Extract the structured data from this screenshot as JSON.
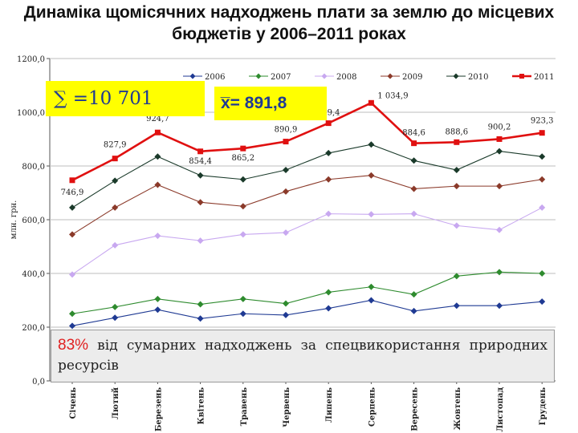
{
  "title_line1": "Динаміка щомісячних надходжень плати за землю до місцевих",
  "title_line2": "бюджетів у 2006–2011  роках",
  "sum_text": "∑ =10 701",
  "mean_text": "x̅= 891,8",
  "note": {
    "percent": "83%",
    "text": " від сумарних надходжень за спецвикористання природних ресурсів"
  },
  "chart_data": {
    "type": "line",
    "title": "",
    "ylabel": "млн. грн.",
    "xlabel": "",
    "ylim": [
      0,
      1200
    ],
    "yticks": [
      "0,0",
      "200,0",
      "400,0",
      "600,0",
      "800,0",
      "1000,0",
      "1200,0"
    ],
    "categories": [
      "Січень",
      "Лютий",
      "Березень",
      "Квітень",
      "Травень",
      "Червень",
      "Липень",
      "Серпень",
      "Вересень",
      "Жовтень",
      "Листопад",
      "Грудень"
    ],
    "legend_position": "top",
    "series": [
      {
        "name": "2006",
        "color": "#1f3a93",
        "marker": "diamond",
        "values": [
          205,
          235,
          265,
          232,
          250,
          245,
          270,
          300,
          260,
          280,
          280,
          295
        ]
      },
      {
        "name": "2007",
        "color": "#2e8b2e",
        "marker": "diamond",
        "values": [
          250,
          275,
          305,
          285,
          305,
          288,
          330,
          350,
          322,
          390,
          405,
          400
        ]
      },
      {
        "name": "2008",
        "color": "#c8a8f0",
        "marker": "diamond",
        "values": [
          396,
          505,
          540,
          522,
          545,
          552,
          622,
          620,
          622,
          578,
          562,
          645
        ]
      },
      {
        "name": "2009",
        "color": "#8b3a2a",
        "marker": "diamond",
        "values": [
          545,
          645,
          730,
          665,
          650,
          705,
          750,
          765,
          715,
          725,
          725,
          750
        ]
      },
      {
        "name": "2010",
        "color": "#1a3a2a",
        "marker": "diamond",
        "values": [
          645,
          745,
          835,
          765,
          750,
          785,
          848,
          880,
          820,
          785,
          855,
          835
        ]
      },
      {
        "name": "2011",
        "color": "#e01010",
        "marker": "square",
        "values": [
          746.9,
          827.9,
          924.7,
          854.4,
          865.2,
          890.9,
          959.4,
          1034.9,
          884.6,
          888.6,
          900.2,
          923.3
        ],
        "labels": [
          "746,9",
          "827,9",
          "924,7",
          "854,4",
          "865,2",
          "890,9",
          "959,4",
          "1 034,9",
          "884,6",
          "888,6",
          "900,2",
          "923,3"
        ]
      }
    ]
  }
}
